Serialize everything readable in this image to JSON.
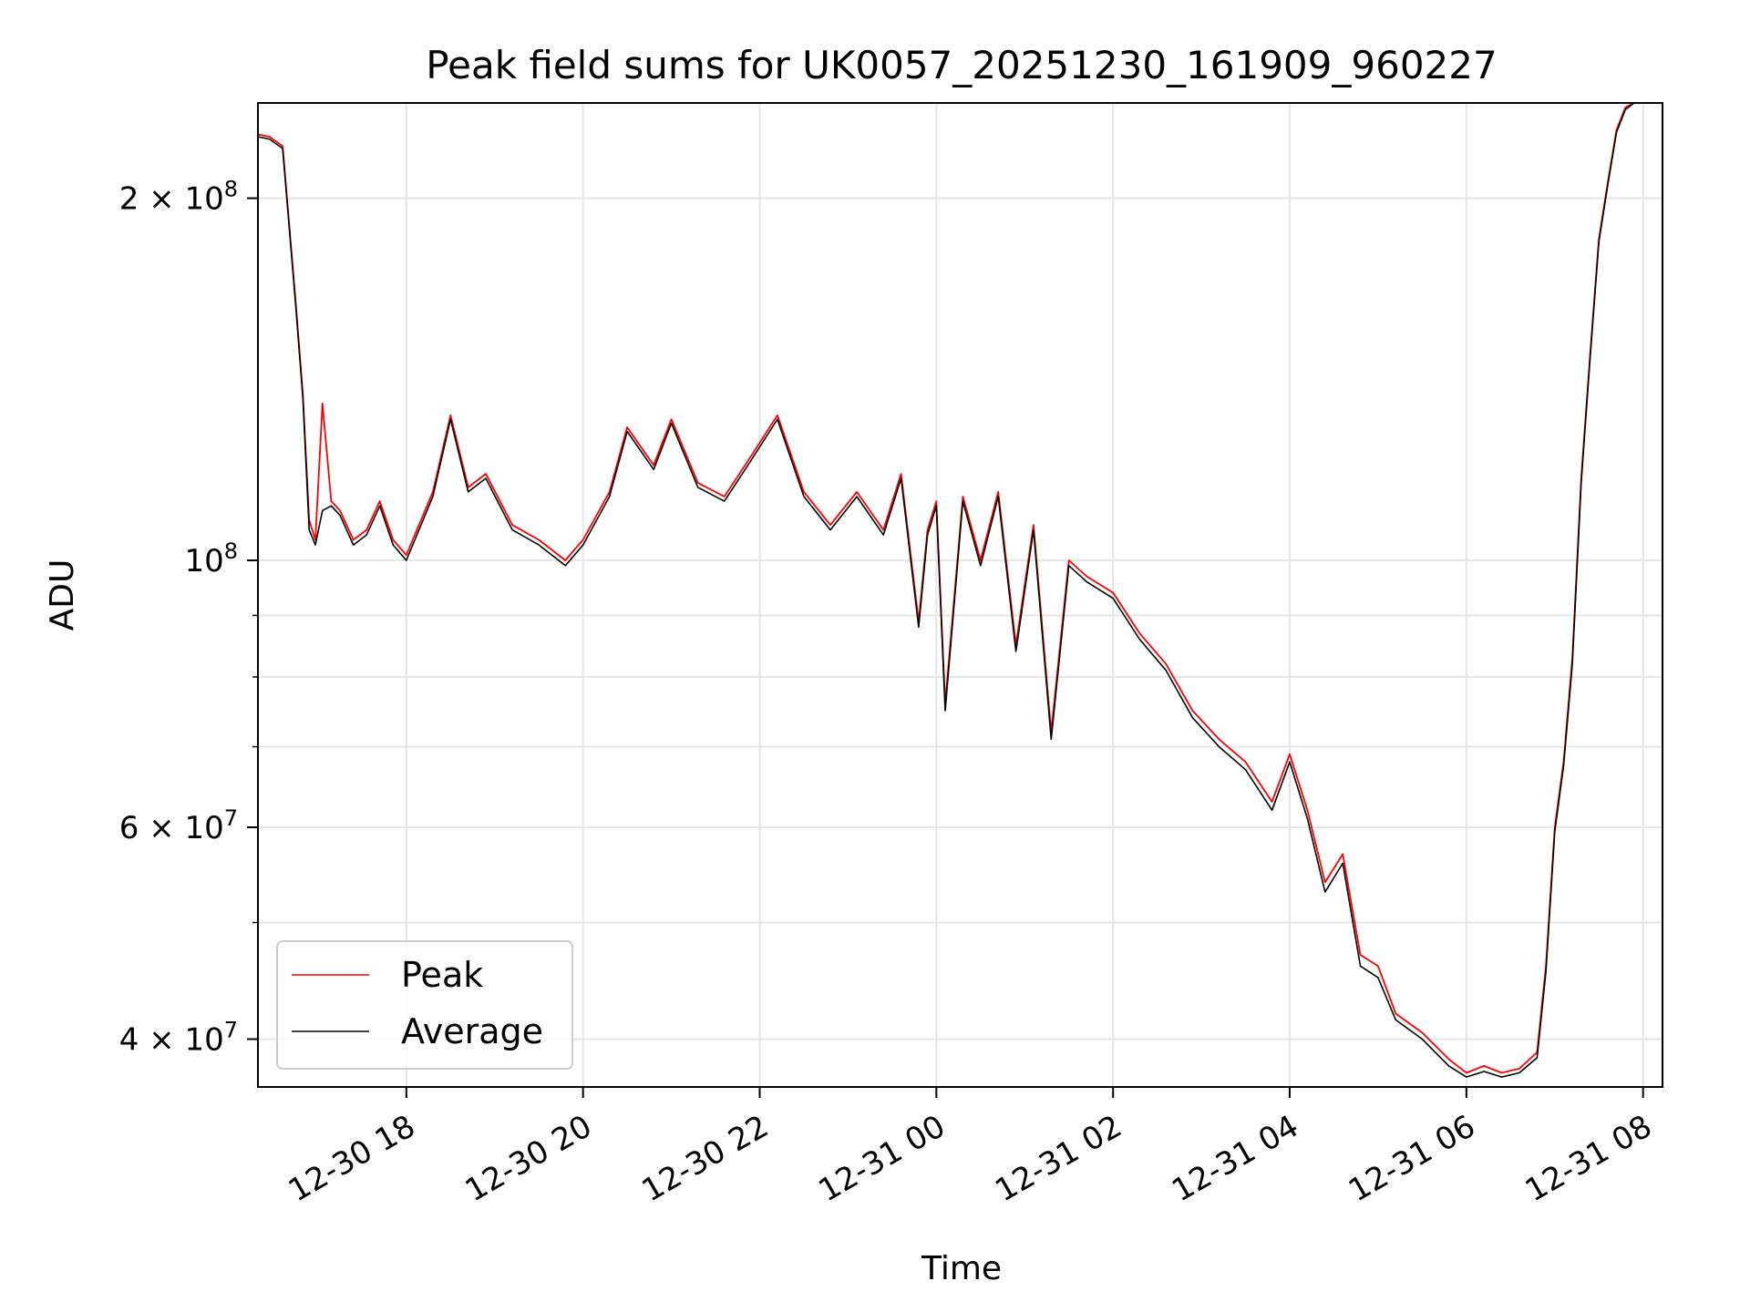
{
  "chart_data": {
    "type": "line",
    "title": "Peak field sums for UK0057_20251230_161909_960227",
    "xlabel": "Time",
    "ylabel": "ADU",
    "yscale": "log",
    "ylim": [
      36500000,
      240000000
    ],
    "xlim_hours": [
      16.32,
      32.22
    ],
    "grid": true,
    "legend_position": "lower-left",
    "x_ticks": [
      {
        "hour": 18,
        "label": "12-30 18"
      },
      {
        "hour": 20,
        "label": "12-30 20"
      },
      {
        "hour": 22,
        "label": "12-30 22"
      },
      {
        "hour": 24,
        "label": "12-31 00"
      },
      {
        "hour": 26,
        "label": "12-31 02"
      },
      {
        "hour": 28,
        "label": "12-31 04"
      },
      {
        "hour": 30,
        "label": "12-31 06"
      },
      {
        "hour": 32,
        "label": "12-31 08"
      }
    ],
    "y_ticks_major": [
      {
        "value": 40000000,
        "base": "4 × 10",
        "exp": "7"
      },
      {
        "value": 60000000,
        "base": "6 × 10",
        "exp": "7"
      },
      {
        "value": 100000000,
        "base": "10",
        "exp": "8"
      },
      {
        "value": 200000000,
        "base": "2 × 10",
        "exp": "8"
      }
    ],
    "y_ticks_minor": [
      50000000,
      70000000,
      80000000,
      90000000
    ],
    "x_hours": [
      16.32,
      16.45,
      16.6,
      16.75,
      16.83,
      16.9,
      16.97,
      17.05,
      17.15,
      17.25,
      17.4,
      17.55,
      17.7,
      17.85,
      18.0,
      18.3,
      18.5,
      18.7,
      18.9,
      19.2,
      19.5,
      19.8,
      20.0,
      20.3,
      20.5,
      20.8,
      21.0,
      21.3,
      21.6,
      21.9,
      22.2,
      22.5,
      22.8,
      23.1,
      23.4,
      23.6,
      23.8,
      23.9,
      24.0,
      24.1,
      24.3,
      24.5,
      24.7,
      24.9,
      25.1,
      25.3,
      25.5,
      25.7,
      26.0,
      26.3,
      26.6,
      26.9,
      27.2,
      27.5,
      27.8,
      28.0,
      28.2,
      28.4,
      28.6,
      28.8,
      29.0,
      29.2,
      29.5,
      29.8,
      30.0,
      30.2,
      30.4,
      30.6,
      30.8,
      30.9,
      31.0,
      31.1,
      31.2,
      31.3,
      31.4,
      31.5,
      31.6,
      31.7,
      31.8,
      31.9,
      32.0
    ],
    "series": [
      {
        "name": "Peak",
        "color": "#ff0000",
        "values": [
          226000000,
          225000000,
          221000000,
          163000000,
          137000000,
          108000000,
          104000000,
          135000000,
          112000000,
          110000000,
          104000000,
          106000000,
          112000000,
          104000000,
          101000000,
          114000000,
          132000000,
          115000000,
          118000000,
          107000000,
          104000000,
          100000000,
          104000000,
          114000000,
          129000000,
          120000000,
          131000000,
          116000000,
          113000000,
          122000000,
          132000000,
          114000000,
          107000000,
          114000000,
          106000000,
          118000000,
          89000000,
          106000000,
          112000000,
          76000000,
          113000000,
          100000000,
          114000000,
          85000000,
          107000000,
          72000000,
          100000000,
          97000000,
          94000000,
          87000000,
          82000000,
          75000000,
          71000000,
          68000000,
          63000000,
          69000000,
          62000000,
          54000000,
          57000000,
          47000000,
          46000000,
          42000000,
          40500000,
          38500000,
          37500000,
          38000000,
          37500000,
          37800000,
          39000000,
          46000000,
          60000000,
          68000000,
          83000000,
          117000000,
          148000000,
          185000000,
          206000000,
          228000000,
          238000000,
          240000000,
          240000000
        ]
      },
      {
        "name": "Average",
        "color": "#000000",
        "values": [
          225000000,
          224000000,
          220000000,
          162000000,
          136000000,
          106000000,
          103000000,
          110000000,
          111000000,
          109000000,
          103000000,
          105000000,
          111000000,
          103000000,
          100000000,
          113000000,
          131000000,
          114000000,
          117000000,
          106000000,
          103000000,
          99000000,
          103000000,
          113000000,
          128000000,
          119000000,
          130000000,
          115000000,
          112000000,
          121000000,
          131000000,
          113000000,
          106000000,
          113000000,
          105000000,
          117000000,
          88000000,
          105000000,
          111000000,
          75000000,
          112000000,
          99000000,
          113000000,
          84000000,
          106000000,
          71000000,
          99000000,
          96000000,
          93000000,
          86000000,
          81000000,
          74000000,
          70000000,
          67000000,
          62000000,
          68000000,
          61000000,
          53000000,
          56000000,
          46000000,
          45000000,
          41500000,
          40000000,
          38000000,
          37200000,
          37600000,
          37200000,
          37500000,
          38600000,
          45500000,
          59500000,
          67500000,
          82000000,
          116000000,
          147000000,
          184000000,
          205000000,
          227000000,
          237000000,
          240000000,
          240000000
        ]
      }
    ]
  }
}
